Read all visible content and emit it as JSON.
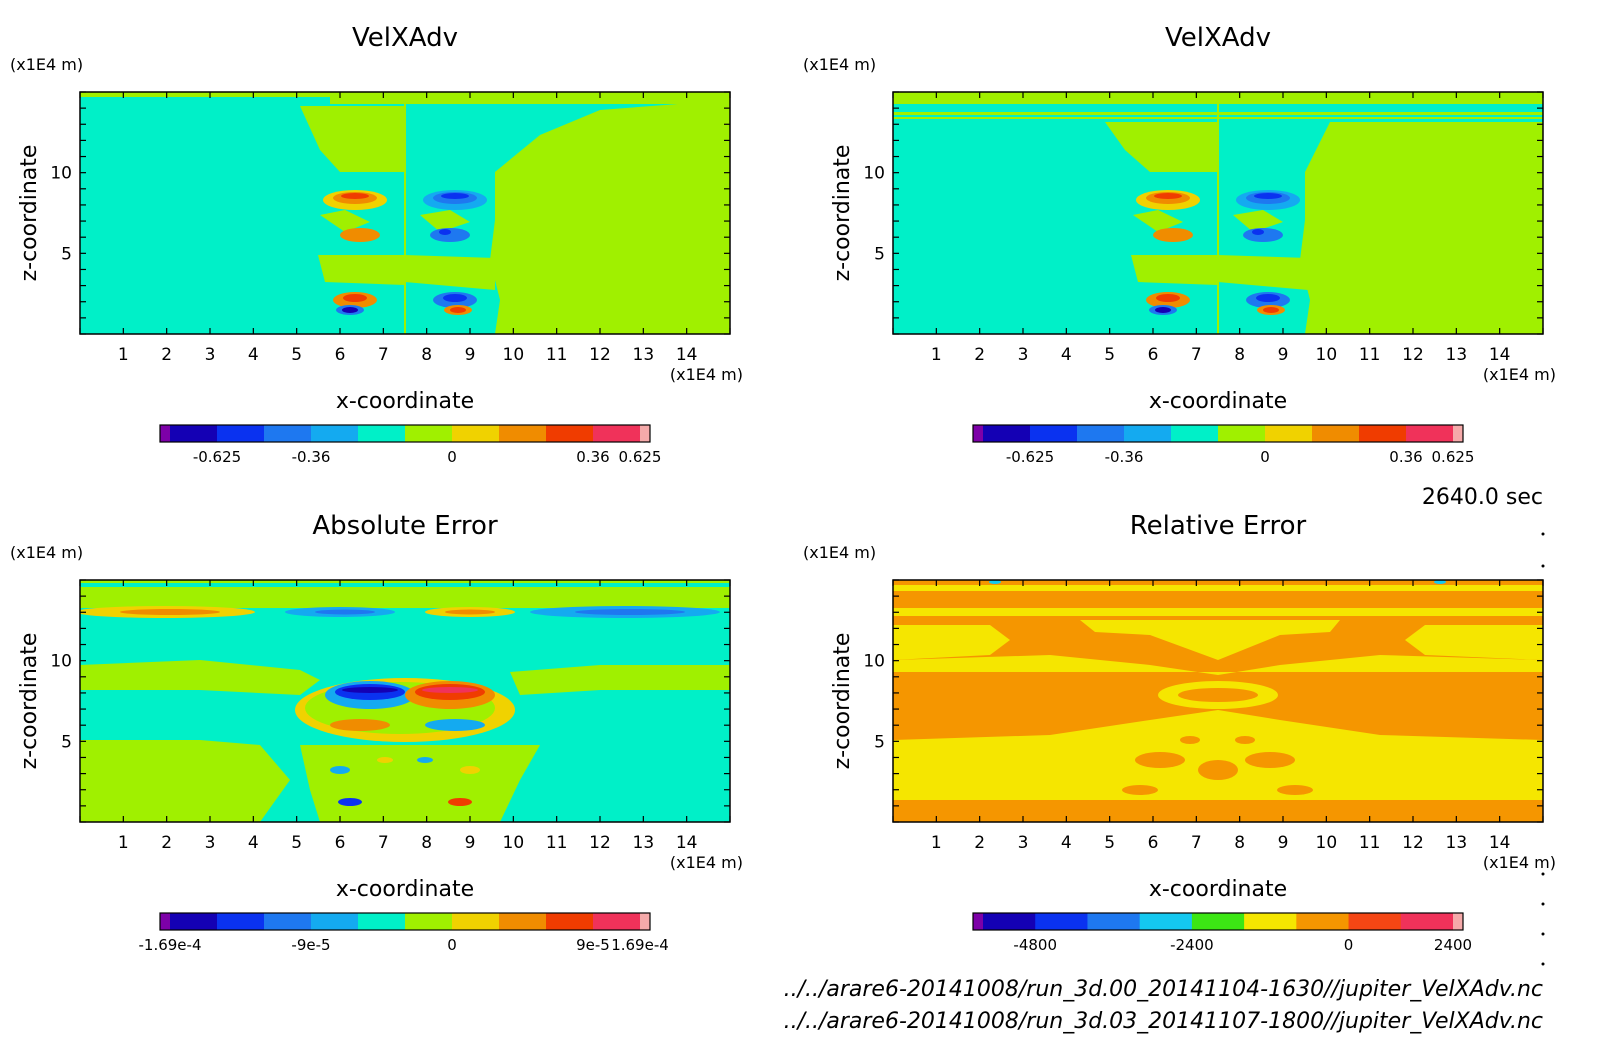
{
  "time_label": "2640.0 sec",
  "files": [
    "../../arare6-20141008/run_3d.00_20141104-1630//jupiter_VelXAdv.nc",
    "../../arare6-20141008/run_3d.03_20141107-1800//jupiter_VelXAdv.nc"
  ],
  "chart_data": [
    {
      "type": "heatmap",
      "title": "VelXAdv",
      "xlabel": "x-coordinate",
      "ylabel": "z-coordinate",
      "x_unit": "(x1E4 m)",
      "y_unit": "(x1E4 m)",
      "xlim": [
        0,
        15
      ],
      "ylim": [
        0,
        15
      ],
      "x_ticks": [
        1,
        2,
        3,
        4,
        5,
        6,
        7,
        8,
        9,
        10,
        11,
        12,
        13,
        14
      ],
      "y_ticks": [
        5,
        10
      ],
      "colorbar": {
        "colors": [
          "#7d00a8",
          "#1400b4",
          "#0a32f0",
          "#1e78f0",
          "#14aaf0",
          "#00f0c8",
          "#a0f000",
          "#f0d200",
          "#f08c00",
          "#f03c00",
          "#f0325a",
          "#f5aaaa"
        ],
        "tick_labels": [
          "-0.625",
          "-0.36",
          "0",
          "0.36",
          "0.625"
        ],
        "tick_positions": [
          1,
          3,
          6,
          9,
          11
        ]
      }
    },
    {
      "type": "heatmap",
      "title": "VelXAdv",
      "xlabel": "x-coordinate",
      "ylabel": "z-coordinate",
      "x_unit": "(x1E4 m)",
      "y_unit": "(x1E4 m)",
      "xlim": [
        0,
        15
      ],
      "ylim": [
        0,
        15
      ],
      "x_ticks": [
        1,
        2,
        3,
        4,
        5,
        6,
        7,
        8,
        9,
        10,
        11,
        12,
        13,
        14
      ],
      "y_ticks": [
        5,
        10
      ],
      "colorbar": {
        "colors": [
          "#7d00a8",
          "#1400b4",
          "#0a32f0",
          "#1e78f0",
          "#14aaf0",
          "#00f0c8",
          "#a0f000",
          "#f0d200",
          "#f08c00",
          "#f03c00",
          "#f0325a",
          "#f5aaaa"
        ],
        "tick_labels": [
          "-0.625",
          "-0.36",
          "0",
          "0.36",
          "0.625"
        ],
        "tick_positions": [
          1,
          3,
          6,
          9,
          11
        ]
      }
    },
    {
      "type": "heatmap",
      "title": "Absolute Error",
      "xlabel": "x-coordinate",
      "ylabel": "z-coordinate",
      "x_unit": "(x1E4 m)",
      "y_unit": "(x1E4 m)",
      "xlim": [
        0,
        15
      ],
      "ylim": [
        0,
        15
      ],
      "x_ticks": [
        1,
        2,
        3,
        4,
        5,
        6,
        7,
        8,
        9,
        10,
        11,
        12,
        13,
        14
      ],
      "y_ticks": [
        5,
        10
      ],
      "colorbar": {
        "colors": [
          "#7d00a8",
          "#1400b4",
          "#0a32f0",
          "#1e78f0",
          "#14aaf0",
          "#00f0c8",
          "#a0f000",
          "#f0d200",
          "#f08c00",
          "#f03c00",
          "#f0325a",
          "#f5aaaa"
        ],
        "tick_labels": [
          "-1.69e-4",
          "-9e-5",
          "0",
          "9e-5",
          "1.69e-4"
        ],
        "tick_positions": [
          0,
          3,
          6,
          9,
          12
        ]
      }
    },
    {
      "type": "heatmap",
      "title": "Relative Error",
      "xlabel": "x-coordinate",
      "ylabel": "z-coordinate",
      "x_unit": "(x1E4 m)",
      "y_unit": "(x1E4 m)",
      "xlim": [
        0,
        15
      ],
      "ylim": [
        0,
        15
      ],
      "x_ticks": [
        1,
        2,
        3,
        4,
        5,
        6,
        7,
        8,
        9,
        10,
        11,
        12,
        13,
        14
      ],
      "y_ticks": [
        5,
        10
      ],
      "colorbar": {
        "colors": [
          "#7d00a8",
          "#1400b4",
          "#0a32f0",
          "#1e78f0",
          "#14c8f0",
          "#3ce614",
          "#f5e600",
          "#f59600",
          "#f54614",
          "#f0325a",
          "#f5aaaa"
        ],
        "tick_labels": [
          "-4800",
          "-2400",
          "0",
          "2400"
        ],
        "tick_positions": [
          1,
          4,
          7,
          10
        ]
      }
    }
  ]
}
